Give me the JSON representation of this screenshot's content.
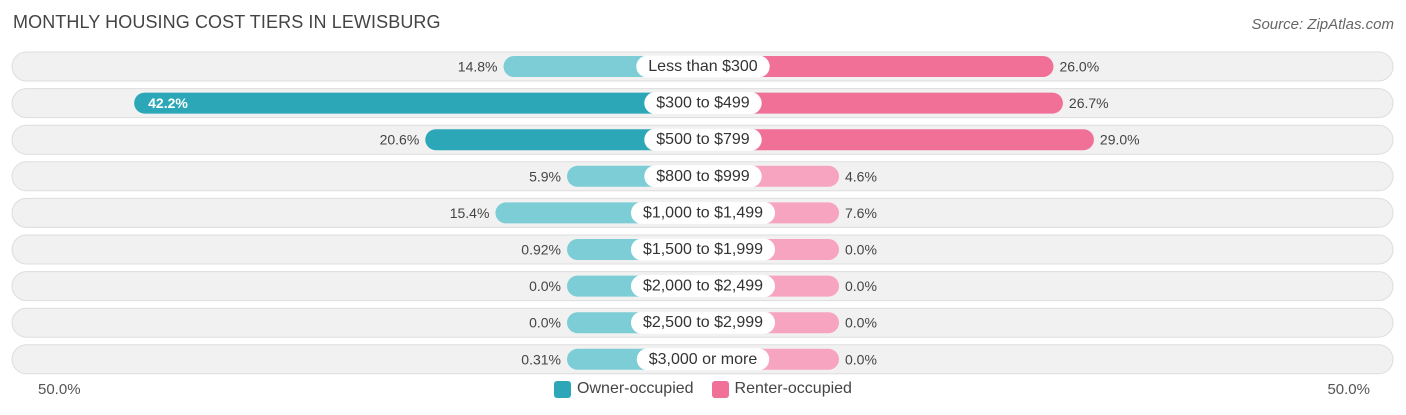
{
  "header": {
    "title": "MONTHLY HOUSING COST TIERS IN LEWISBURG",
    "source": "Source: ZipAtlas.com"
  },
  "axis": {
    "left_label": "50.0%",
    "right_label": "50.0%"
  },
  "legend": {
    "owner_label": "Owner-occupied",
    "renter_label": "Renter-occupied"
  },
  "colors": {
    "owner_strong": "#2ba7b7",
    "owner_light": "#7dcdd6",
    "renter_strong": "#f07098",
    "renter_light": "#f6a4bf",
    "row_bg": "#f1f1f1",
    "row_border": "#dddddd"
  },
  "chart_data": {
    "type": "bar",
    "orientation": "horizontal-diverging",
    "title": "MONTHLY HOUSING COST TIERS IN LEWISBURG",
    "xlim": [
      -50,
      50
    ],
    "categories": [
      "Less than $300",
      "$300 to $499",
      "$500 to $799",
      "$800 to $999",
      "$1,000 to $1,499",
      "$1,500 to $1,999",
      "$2,000 to $2,499",
      "$2,500 to $2,999",
      "$3,000 or more"
    ],
    "series": [
      {
        "name": "Owner-occupied",
        "values": [
          14.8,
          42.2,
          20.6,
          5.9,
          15.4,
          0.92,
          0.0,
          0.0,
          0.31
        ],
        "labels": [
          "14.8%",
          "42.2%",
          "20.6%",
          "5.9%",
          "15.4%",
          "0.92%",
          "0.0%",
          "0.0%",
          "0.31%"
        ]
      },
      {
        "name": "Renter-occupied",
        "values": [
          26.0,
          26.7,
          29.0,
          4.6,
          7.6,
          0.0,
          0.0,
          0.0,
          0.0
        ],
        "labels": [
          "26.0%",
          "26.7%",
          "29.0%",
          "4.6%",
          "7.6%",
          "0.0%",
          "0.0%",
          "0.0%",
          "0.0%"
        ]
      }
    ],
    "legend_position": "bottom-center"
  }
}
